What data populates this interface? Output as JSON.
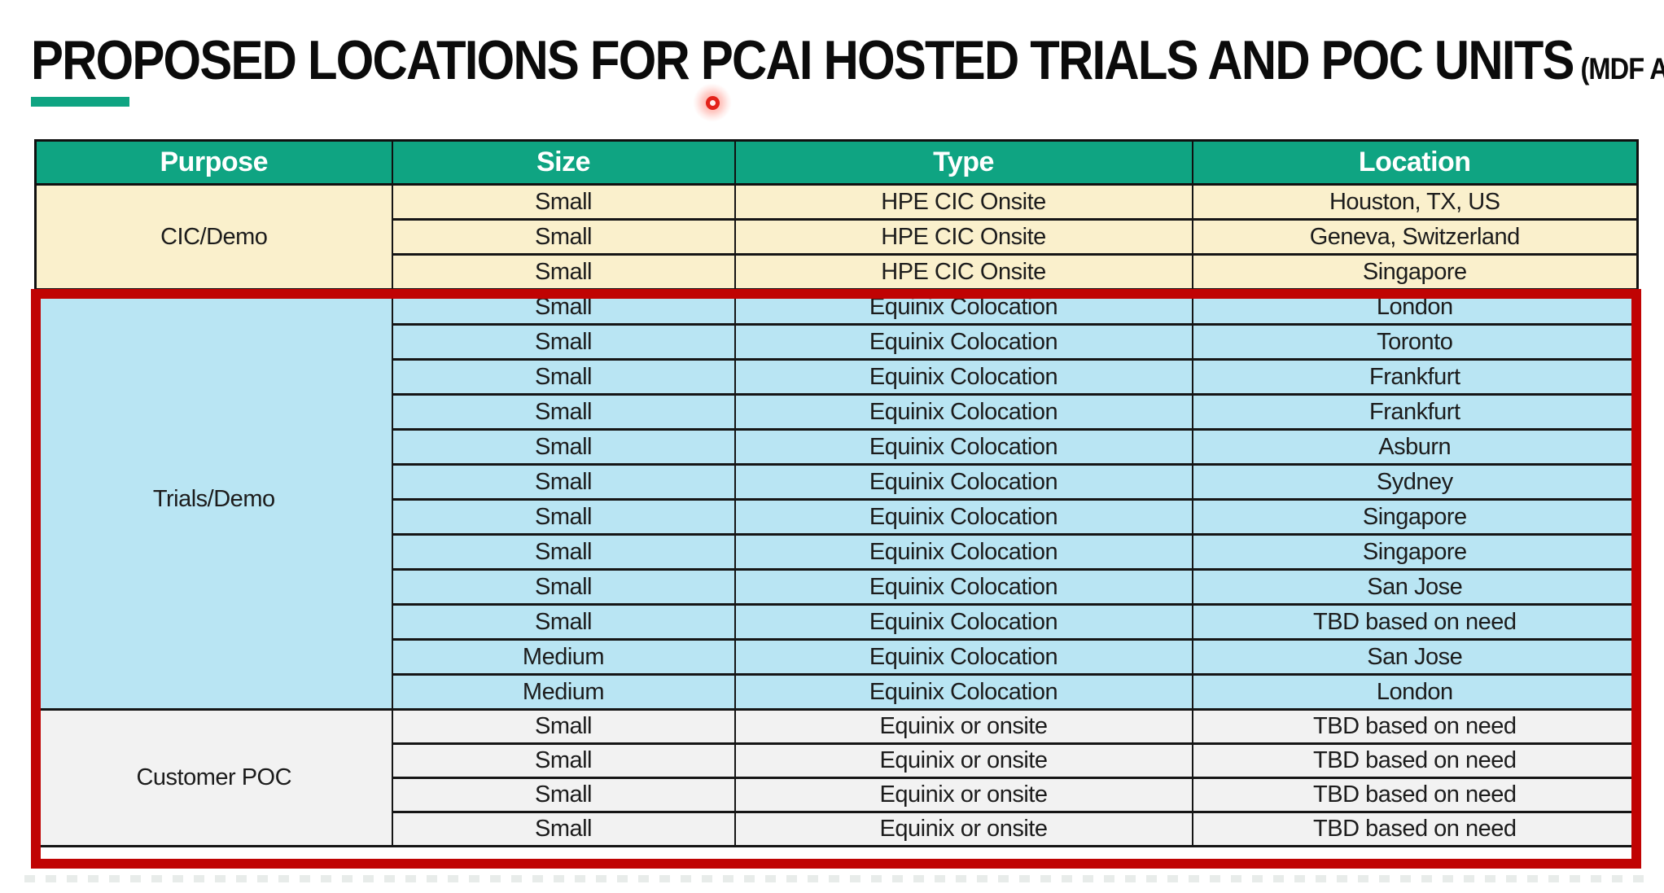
{
  "slide": {
    "title": "PROPOSED LOCATIONS FOR PCAI HOSTED TRIALS AND POC UNITS",
    "title_suffix": "(MDF APPROVED)"
  },
  "colors": {
    "header_bg": "#0FA482",
    "accent_bar": "#0FA482",
    "highlight_border": "#C00303",
    "laser_dot": "#E3231A",
    "header_text": "#FFFFFF",
    "body_text": "#1C1C1C",
    "cic_demo_bg": "#FAF0CC",
    "trials_demo_bg": "#B9E5F3",
    "customer_poc_bg": "#F2F2F2"
  },
  "table": {
    "headers": [
      "Purpose",
      "Size",
      "Type",
      "Location"
    ],
    "sections": [
      {
        "id": "cic-demo",
        "purpose": "CIC/Demo",
        "bg_key": "cic_demo_bg",
        "highlighted": false,
        "rows": [
          [
            "Small",
            "HPE CIC Onsite",
            "Houston, TX, US"
          ],
          [
            "Small",
            "HPE CIC Onsite",
            "Geneva, Switzerland"
          ],
          [
            "Small",
            "HPE CIC Onsite",
            "Singapore"
          ]
        ]
      },
      {
        "id": "trials-demo",
        "purpose": "Trials/Demo",
        "bg_key": "trials_demo_bg",
        "highlighted": true,
        "rows": [
          [
            "Small",
            "Equinix Colocation",
            "London"
          ],
          [
            "Small",
            "Equinix Colocation",
            "Toronto"
          ],
          [
            "Small",
            "Equinix Colocation",
            "Frankfurt"
          ],
          [
            "Small",
            "Equinix Colocation",
            "Frankfurt"
          ],
          [
            "Small",
            "Equinix Colocation",
            "Asburn"
          ],
          [
            "Small",
            "Equinix Colocation",
            "Sydney"
          ],
          [
            "Small",
            "Equinix Colocation",
            "Singapore"
          ],
          [
            "Small",
            "Equinix Colocation",
            "Singapore"
          ],
          [
            "Small",
            "Equinix Colocation",
            "San Jose"
          ],
          [
            "Small",
            "Equinix Colocation",
            "TBD based on need"
          ],
          [
            "Medium",
            "Equinix Colocation",
            "San Jose"
          ],
          [
            "Medium",
            "Equinix Colocation",
            "London"
          ]
        ]
      },
      {
        "id": "customer-poc",
        "purpose": "Customer POC",
        "bg_key": "customer_poc_bg",
        "highlighted": true,
        "rows": [
          [
            "Small",
            "Equinix or onsite",
            "TBD based on need"
          ],
          [
            "Small",
            "Equinix or onsite",
            "TBD based on need"
          ],
          [
            "Small",
            "Equinix or onsite",
            "TBD based on need"
          ],
          [
            "Small",
            "Equinix or onsite",
            "TBD based on need"
          ]
        ]
      }
    ]
  },
  "annotations": {
    "highlight_box": "red box around Trials/Demo and Customer POC sections",
    "laser_pointer_dot": "red dot near title"
  }
}
